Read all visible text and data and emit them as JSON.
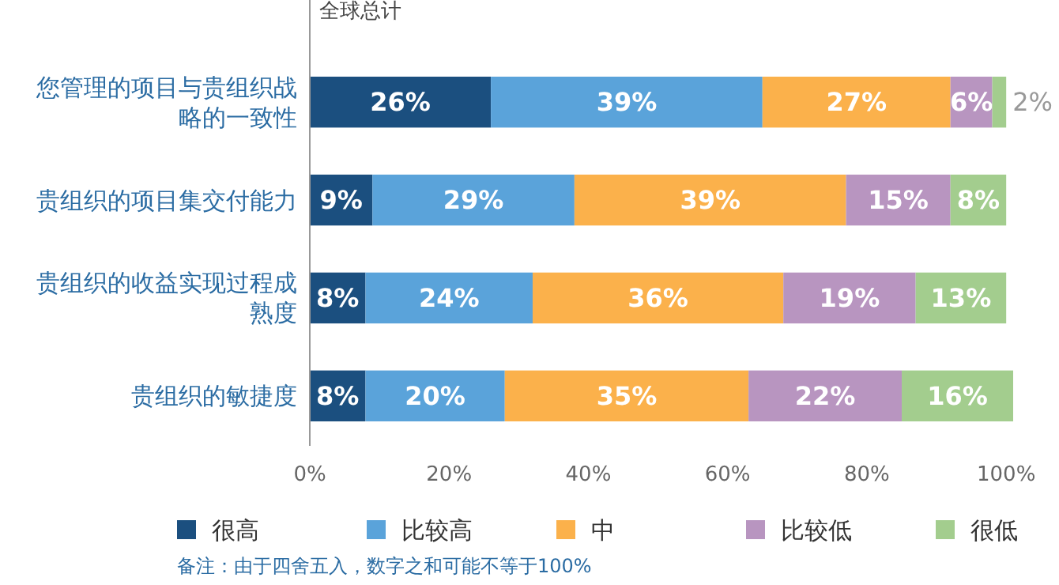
{
  "chart_data": {
    "type": "bar",
    "orientation": "horizontal",
    "stacked": true,
    "subtitle": "全球总计",
    "categories": [
      "您管理的项目与贵组织战略的一致性",
      "贵组织的项目集交付能力",
      "贵组织的收益实现过程成熟度",
      "贵组织的敏捷度"
    ],
    "series": [
      {
        "name": "很高",
        "color": "#1b4f7f",
        "values": [
          26,
          9,
          8,
          8
        ],
        "value_labels": [
          "26%",
          "9%",
          "8%",
          "8%"
        ]
      },
      {
        "name": "比较高",
        "color": "#5aa3da",
        "values": [
          39,
          29,
          24,
          20
        ],
        "value_labels": [
          "39%",
          "29%",
          "24%",
          "20%"
        ]
      },
      {
        "name": "中",
        "color": "#fbb14b",
        "values": [
          27,
          39,
          36,
          35
        ],
        "value_labels": [
          "27%",
          "39%",
          "36%",
          "35%"
        ]
      },
      {
        "name": "比较低",
        "color": "#b895c0",
        "values": [
          6,
          15,
          19,
          22
        ],
        "value_labels": [
          "6%",
          "15%",
          "19%",
          "22%"
        ]
      },
      {
        "name": "很低",
        "color": "#a3cd8e",
        "values": [
          2,
          8,
          13,
          16
        ],
        "value_labels": [
          "2%",
          "8%",
          "13%",
          "16%"
        ]
      }
    ],
    "xlim": [
      0,
      101
    ],
    "xticks": [
      {
        "value": 0,
        "label": "0%"
      },
      {
        "value": 20,
        "label": "20%"
      },
      {
        "value": 40,
        "label": "40%"
      },
      {
        "value": 60,
        "label": "60%"
      },
      {
        "value": 80,
        "label": "80%"
      },
      {
        "value": 100,
        "label": "100%"
      }
    ],
    "legend": "bottom",
    "grid": false,
    "annotations": [
      "备注：由于四舍五入，数字之和可能不等于100%"
    ]
  }
}
